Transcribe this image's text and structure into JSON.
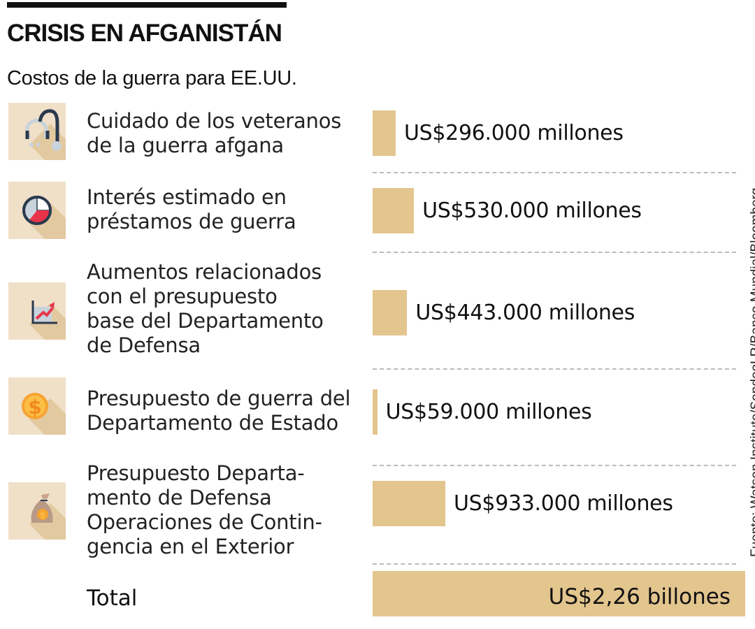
{
  "title": "CRISIS EN AFGANISTÁN",
  "subtitle": "Costos de la guerra para EE.UU.",
  "source": "Fuente: Watson Institute/SondeoLR/Banco Mundial/Bloomberg",
  "colors": {
    "bar": "#e3c58e",
    "icon_bg": "#f0e0c8"
  },
  "chart_data": {
    "type": "bar",
    "orientation": "horizontal",
    "title": "Costos de la guerra para EE.UU.",
    "unit": "millones de US$",
    "categories": [
      "Cuidado de los veteranos de la guerra afgana",
      "Interés estimado en préstamos de guerra",
      "Aumentos relacionados con el presupuesto base del Departamento de Defensa",
      "Presupuesto de guerra del Departamento de Estado",
      "Presupuesto Departamento de Defensa Operaciones de Contingencia en el Exterior"
    ],
    "values": [
      296000,
      530000,
      443000,
      59000,
      933000
    ],
    "rows": [
      {
        "label": "Cuidado de los veteranos\nde la guerra afgana",
        "value": 296000,
        "value_label": "US$296.000 millones",
        "icon": "stethoscope-icon"
      },
      {
        "label": "Interés estimado en\npréstamos de guerra",
        "value": 530000,
        "value_label": "US$530.000 millones",
        "icon": "pie-chart-icon"
      },
      {
        "label": "Aumentos relacionados\ncon el presupuesto\nbase del Departamento\nde Defensa",
        "value": 443000,
        "value_label": "US$443.000 millones",
        "icon": "growth-chart-icon"
      },
      {
        "label": "Presupuesto de guerra del\nDepartamento de Estado",
        "value": 59000,
        "value_label": "US$59.000 millones",
        "icon": "dollar-coin-icon"
      },
      {
        "label": "Presupuesto Departa-\nmento de Defensa\nOperaciones de Contin-\ngencia en el Exterior",
        "value": 933000,
        "value_label": "US$933.000 millones",
        "icon": "money-bag-icon"
      }
    ],
    "total": {
      "label": "Total",
      "value_label": "US$2,26 billones"
    }
  }
}
